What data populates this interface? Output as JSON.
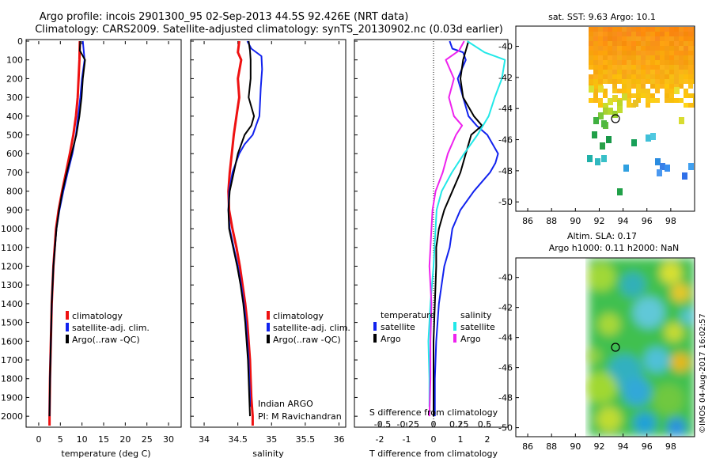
{
  "header": {
    "title_line1": "Argo profile: incois 2901300_95 02-Sep-2013 44.5S 92.426E (NRT data)",
    "title_line2": "Climatology: CARS2009. Satellite-adjusted climatology: synTS_20130902.nc (0.03d earlier)"
  },
  "colors": {
    "climatology": "#ee1111",
    "satellite": "#1122ee",
    "argo": "#000000",
    "sat_salinity": "#22e8e8",
    "argo_salinity": "#ee22ee"
  },
  "chart_data": [
    {
      "type": "line",
      "id": "temperature",
      "xlabel": "temperature (deg C)",
      "ylabel": "",
      "xlim": [
        -2,
        32
      ],
      "ylim": [
        2050,
        0
      ],
      "xticks": [
        "0",
        "5",
        "10",
        "15",
        "20",
        "25",
        "30"
      ],
      "yticks": [
        "0",
        "100",
        "200",
        "300",
        "400",
        "500",
        "600",
        "700",
        "800",
        "900",
        "1000",
        "1100",
        "1200",
        "1300",
        "1400",
        "1500",
        "1600",
        "1700",
        "1800",
        "1900",
        "2000"
      ],
      "legend": [
        "climatology",
        "satellite-adj. clim.",
        "Argo(..raw -QC)"
      ],
      "series": [
        {
          "name": "climatology",
          "depth": [
            0,
            100,
            200,
            300,
            400,
            500,
            600,
            700,
            800,
            900,
            1000,
            1200,
            1400,
            1600,
            1800,
            2000,
            2050
          ],
          "values": [
            9.5,
            9.4,
            9.2,
            9.0,
            8.6,
            8.0,
            7.2,
            6.3,
            5.4,
            4.6,
            4.0,
            3.4,
            3.0,
            2.8,
            2.6,
            2.5,
            2.5
          ]
        },
        {
          "name": "satellite-adj. clim.",
          "depth": [
            0,
            100,
            200,
            300,
            400,
            500,
            600,
            700,
            800,
            900,
            1000,
            1200,
            1400,
            1600,
            1800,
            2000
          ],
          "values": [
            10.2,
            10.6,
            10.0,
            9.6,
            9.1,
            8.6,
            7.8,
            6.7,
            5.7,
            4.8,
            4.1,
            3.4,
            3.0,
            2.8,
            2.6,
            2.5
          ]
        },
        {
          "name": "Argo(..raw -QC)",
          "depth": [
            0,
            50,
            100,
            200,
            300,
            400,
            500,
            600,
            700,
            800,
            900,
            1000,
            1200,
            1400,
            1600,
            1800,
            2000
          ],
          "values": [
            9.6,
            9.5,
            10.7,
            10.2,
            9.9,
            9.4,
            8.7,
            7.6,
            6.5,
            5.5,
            4.7,
            4.1,
            3.4,
            3.0,
            2.8,
            2.6,
            2.5
          ]
        }
      ]
    },
    {
      "type": "line",
      "id": "salinity",
      "xlabel": "salinity",
      "ylabel": "",
      "xlim": [
        33.8,
        36.1
      ],
      "ylim": [
        2050,
        0
      ],
      "xticks": [
        "34",
        "34.5",
        "35",
        "35.5",
        "36"
      ],
      "legend": [
        "climatology",
        "satellite-adj. clim.",
        "Argo(..raw -QC)"
      ],
      "annotation": [
        "Indian ARGO",
        "PI: M Ravichandran"
      ],
      "series": [
        {
          "name": "climatology",
          "depth": [
            0,
            60,
            100,
            200,
            300,
            400,
            500,
            600,
            700,
            800,
            900,
            1000,
            1100,
            1200,
            1300,
            1400,
            1500,
            1600,
            1700,
            1800,
            1900,
            2000,
            2050
          ],
          "values": [
            34.52,
            34.5,
            34.55,
            34.5,
            34.52,
            34.48,
            34.44,
            34.41,
            34.38,
            34.36,
            34.37,
            34.42,
            34.48,
            34.53,
            34.57,
            34.61,
            34.64,
            34.66,
            34.68,
            34.69,
            34.7,
            34.72,
            34.72
          ]
        },
        {
          "name": "satellite-adj. clim.",
          "depth": [
            0,
            40,
            80,
            150,
            250,
            400,
            500,
            550,
            600,
            700,
            800,
            900,
            1000,
            1100,
            1200,
            1300,
            1400,
            1500,
            1600,
            1700,
            1800,
            1900,
            1950
          ],
          "values": [
            34.64,
            34.7,
            34.85,
            34.86,
            34.84,
            34.82,
            34.72,
            34.6,
            34.52,
            34.42,
            34.37,
            34.36,
            34.38,
            34.44,
            34.5,
            34.55,
            34.59,
            34.62,
            34.64,
            34.66,
            34.67,
            34.68,
            34.68
          ]
        },
        {
          "name": "Argo(..raw -QC)",
          "depth": [
            0,
            50,
            100,
            200,
            300,
            350,
            400,
            450,
            500,
            600,
            700,
            800,
            900,
            1000,
            1100,
            1200,
            1300,
            1400,
            1500,
            1600,
            1700,
            1800,
            1900,
            2000
          ],
          "values": [
            34.66,
            34.68,
            34.69,
            34.69,
            34.66,
            34.7,
            34.74,
            34.7,
            34.6,
            34.5,
            34.44,
            34.38,
            34.36,
            34.37,
            34.43,
            34.49,
            34.54,
            34.58,
            34.61,
            34.63,
            34.65,
            34.66,
            34.67,
            34.68
          ]
        }
      ]
    },
    {
      "type": "line",
      "id": "differences",
      "xlabel": "T difference from climatology",
      "xlabel_top": "S difference from climatology",
      "xlim": [
        -2.9,
        2.9
      ],
      "ylim": [
        2050,
        0
      ],
      "xticks": [
        "-2",
        "-1",
        "0",
        "1",
        "2"
      ],
      "xticks_top": [
        "-0.5",
        "-0.25",
        "0",
        "0.25",
        "0.5"
      ],
      "legend_title_t": "temperature",
      "legend_title_s": "salinity",
      "legend": [
        "satellite",
        "Argo",
        "satellite",
        "Argo"
      ],
      "series": [
        {
          "name": "T satellite",
          "depth": [
            0,
            40,
            60,
            100,
            200,
            300,
            400,
            450,
            500,
            550,
            600,
            650,
            700,
            800,
            900,
            1000,
            1100,
            1200,
            1400,
            1600,
            1800,
            2000
          ],
          "values": [
            0.6,
            0.7,
            1.1,
            1.2,
            0.9,
            1.1,
            1.3,
            1.6,
            2.0,
            2.2,
            2.4,
            2.3,
            2.1,
            1.5,
            1.0,
            0.7,
            0.6,
            0.4,
            0.2,
            0.1,
            0.05,
            0.05
          ]
        },
        {
          "name": "T argo",
          "depth": [
            0,
            50,
            100,
            200,
            300,
            400,
            450,
            500,
            600,
            700,
            800,
            900,
            1000,
            1100,
            1200,
            1400,
            1600,
            1800,
            2000
          ],
          "values": [
            1.3,
            1.2,
            1.1,
            1.0,
            1.1,
            1.5,
            1.8,
            1.4,
            1.2,
            1.0,
            0.7,
            0.4,
            0.2,
            0.1,
            0.1,
            0.05,
            0.0,
            0.0,
            0.0
          ]
        },
        {
          "name": "S satellite",
          "depth": [
            0,
            60,
            100,
            200,
            300,
            400,
            500,
            600,
            700,
            800,
            900,
            1000,
            1200,
            1400,
            1600,
            1800,
            1950
          ],
          "values": [
            0.33,
            0.5,
            0.7,
            0.67,
            0.6,
            0.54,
            0.43,
            0.3,
            0.18,
            0.08,
            0.03,
            0.02,
            0.0,
            -0.03,
            -0.05,
            -0.04,
            -0.04
          ]
        },
        {
          "name": "S argo",
          "depth": [
            0,
            50,
            100,
            200,
            300,
            400,
            450,
            500,
            600,
            700,
            800,
            900,
            1000,
            1100,
            1200,
            1400,
            1600,
            1800,
            2000
          ],
          "values": [
            0.3,
            0.25,
            0.12,
            0.2,
            0.15,
            0.2,
            0.28,
            0.22,
            0.14,
            0.09,
            0.02,
            -0.01,
            -0.02,
            -0.03,
            -0.04,
            -0.02,
            -0.03,
            -0.03,
            -0.04
          ]
        }
      ]
    },
    {
      "type": "heatmap",
      "id": "sst_map",
      "title": "sat. SST: 9.63 Argo: 10.1",
      "xlim": [
        85,
        100
      ],
      "ylim": [
        -50.6,
        -38.7
      ],
      "xticks": [
        "86",
        "88",
        "90",
        "92",
        "94",
        "96",
        "98"
      ],
      "yticks": [
        "-40",
        "-42",
        "-44",
        "-46",
        "-48",
        "-50"
      ],
      "argo_position": {
        "lon": 92.43,
        "lat": -44.5
      }
    },
    {
      "type": "heatmap",
      "id": "sla_map",
      "title_line1": "Altim. SLA: 0.17",
      "title_line2": "Argo h1000: 0.11 h2000: NaN",
      "xlim": [
        85,
        100
      ],
      "ylim": [
        -50.6,
        -38.7
      ],
      "xticks": [
        "86",
        "88",
        "90",
        "92",
        "94",
        "96",
        "98"
      ],
      "yticks": [
        "-40",
        "-42",
        "-44",
        "-46",
        "-48",
        "-50"
      ],
      "argo_position": {
        "lon": 92.43,
        "lat": -44.5
      }
    }
  ],
  "footer": {
    "stamp": "©IMOS 04-Aug-2017 16:02:57"
  }
}
